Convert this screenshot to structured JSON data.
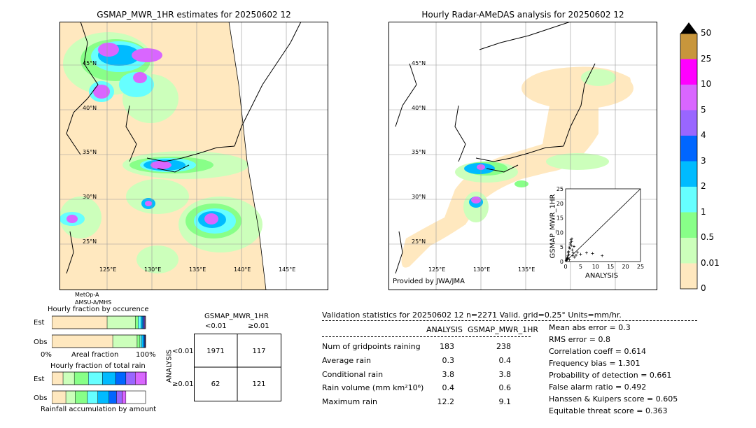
{
  "left_map": {
    "title": "GSMAP_MWR_1HR estimates for 20250602 12",
    "lat_labels": [
      "45°N",
      "40°N",
      "35°N",
      "30°N",
      "25°N"
    ],
    "lon_labels": [
      "125°E",
      "130°E",
      "135°E",
      "140°E",
      "145°E"
    ],
    "sensor_label_1": "MetOp-A",
    "sensor_label_2": "AMSU-A/MHS"
  },
  "right_map": {
    "title": "Hourly Radar-AMeDAS analysis for 20250602 12",
    "lat_labels": [
      "45°N",
      "40°N",
      "35°N",
      "30°N",
      "25°N"
    ],
    "lon_labels": [
      "125°E",
      "130°E",
      "135°E"
    ],
    "credit": "Provided by JWA/JMA"
  },
  "colorbar": {
    "labels": [
      "50",
      "25",
      "10",
      "5",
      "4",
      "3",
      "2",
      "1",
      "0.5",
      "0.01",
      "0"
    ],
    "colors": [
      "#c8963c",
      "#ff00ff",
      "#d966ff",
      "#9966ff",
      "#0066ff",
      "#00bbff",
      "#66ffff",
      "#88ff88",
      "#ccffbb",
      "#ffe8bf"
    ]
  },
  "scatter": {
    "ylabel": "GSMAP_MWR_1HR",
    "xlabel": "ANALYSIS",
    "ticks": [
      "0",
      "5",
      "10",
      "15",
      "20",
      "25"
    ]
  },
  "fraction_occurrence": {
    "title": "Hourly fraction by occurence",
    "row_labels": [
      "Est",
      "Obs"
    ],
    "axis_left": "0%",
    "axis_mid": "Areal fraction",
    "axis_right": "100%"
  },
  "fraction_total": {
    "title": "Hourly fraction of total rain",
    "row_labels": [
      "Est",
      "Obs"
    ],
    "footer": "Rainfall accumulation by amount"
  },
  "contingency": {
    "title": "GSMAP_MWR_1HR",
    "col_labels": [
      "<0.01",
      "≥0.01"
    ],
    "row_labels": [
      "<0.01",
      "≥0.01"
    ],
    "side_label": "ANALYSIS",
    "cells": [
      "1971",
      "117",
      "62",
      "121"
    ]
  },
  "validation": {
    "header": "Validation statistics for 20250602 12  n=2271 Valid. grid=0.25° Units=mm/hr.",
    "col_analysis": "ANALYSIS",
    "col_gsmap": "GSMAP_MWR_1HR",
    "rows": [
      {
        "label": "Num of gridpoints raining",
        "analysis": "183",
        "gsmap": "238"
      },
      {
        "label": "Average rain",
        "analysis": "0.3",
        "gsmap": "0.4"
      },
      {
        "label": "Conditional rain",
        "analysis": "3.8",
        "gsmap": "3.8"
      },
      {
        "label": "Rain volume (mm km²10⁶)",
        "analysis": "0.4",
        "gsmap": "0.6"
      },
      {
        "label": "Maximum rain",
        "analysis": "12.2",
        "gsmap": "9.1"
      }
    ],
    "scores": [
      "Mean abs error =    0.3",
      "RMS error =    0.8",
      "Correlation coeff =  0.614",
      "Frequency bias =  1.301",
      "Probability of detection =  0.661",
      "False alarm ratio =  0.492",
      "Hanssen & Kuipers score =  0.605",
      "Equitable threat score =  0.363"
    ]
  },
  "chart_data": [
    {
      "type": "scatter",
      "xlabel": "ANALYSIS",
      "ylabel": "GSMAP_MWR_1HR",
      "xlim": [
        0,
        25
      ],
      "ylim": [
        0,
        25
      ],
      "x": [
        0.2,
        0.5,
        0.8,
        1.0,
        1.2,
        1.5,
        1.8,
        2.0,
        2.2,
        2.5,
        0.3,
        0.6,
        1.1,
        1.4,
        1.9,
        2.4,
        3.0,
        0.4,
        0.9,
        1.6,
        2.1,
        2.8,
        3.5,
        4.0,
        5.0,
        7.0,
        9.0,
        12.2,
        0.7,
        1.3
      ],
      "y": [
        0.3,
        1.0,
        2.0,
        3.5,
        5.0,
        6.0,
        7.5,
        6.8,
        4.0,
        3.0,
        0.5,
        1.5,
        2.5,
        4.5,
        5.5,
        2.0,
        1.5,
        0.8,
        3.0,
        6.5,
        7.8,
        5.2,
        2.2,
        3.2,
        2.5,
        3.0,
        2.8,
        2.0,
        1.2,
        0.6
      ]
    },
    {
      "type": "bar",
      "title": "Hourly fraction by occurence",
      "categories": [
        "Est",
        "Obs"
      ],
      "series": [
        {
          "values": [
            0.59,
            0.65
          ]
        },
        {
          "values": [
            0.3,
            0.26
          ]
        },
        {
          "values": [
            0.03,
            0.03
          ]
        },
        {
          "values": [
            0.03,
            0.02
          ]
        },
        {
          "values": [
            0.02,
            0.02
          ]
        },
        {
          "values": [
            0.01,
            0.01
          ]
        },
        {
          "values": [
            0.01,
            0.005
          ]
        },
        {
          "values": [
            0.005,
            0.005
          ]
        }
      ]
    },
    {
      "type": "bar",
      "title": "Hourly fraction of total rain",
      "categories": [
        "Est",
        "Obs"
      ],
      "series": [
        {
          "values": [
            0.12,
            0.15
          ]
        },
        {
          "values": [
            0.12,
            0.1
          ]
        },
        {
          "values": [
            0.15,
            0.13
          ]
        },
        {
          "values": [
            0.15,
            0.11
          ]
        },
        {
          "values": [
            0.14,
            0.12
          ]
        },
        {
          "values": [
            0.11,
            0.08
          ]
        },
        {
          "values": [
            0.1,
            0.06
          ]
        },
        {
          "values": [
            0.21,
            0.04
          ]
        }
      ]
    }
  ]
}
